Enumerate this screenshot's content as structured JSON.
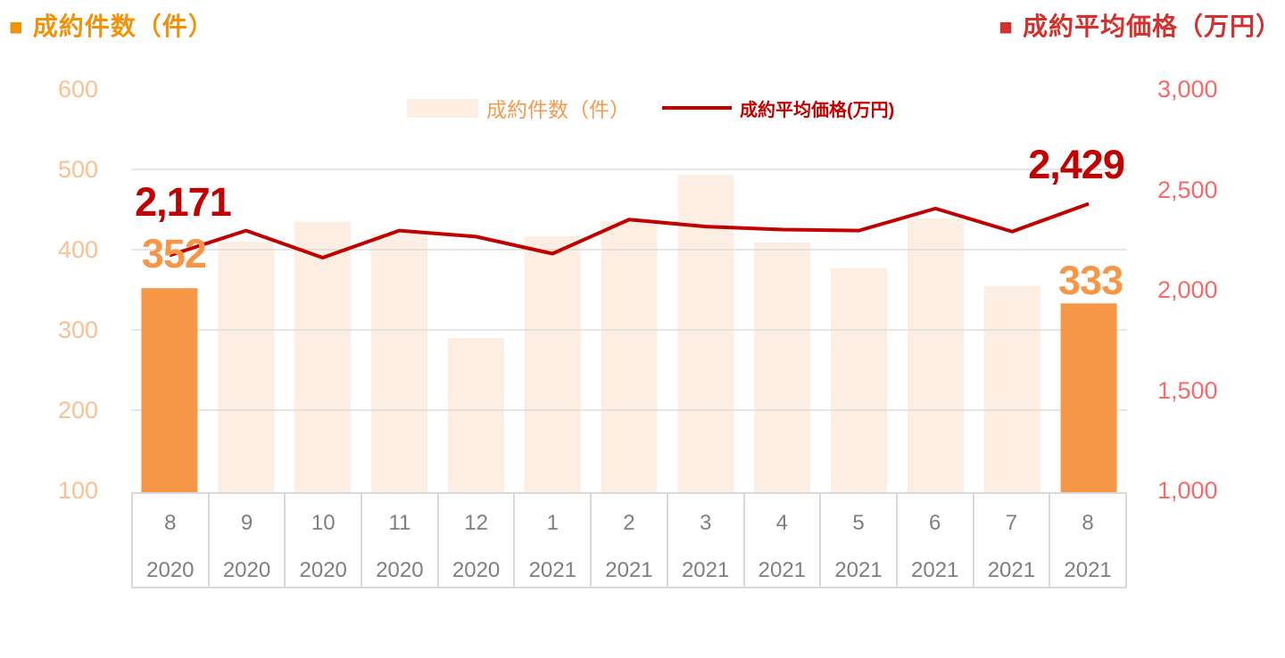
{
  "header": {
    "left_marker": "■",
    "left_title": "成約件数（件）",
    "right_marker": "■",
    "right_title": "成約平均価格（万円）"
  },
  "legend": {
    "bar_label": "成約件数（件）",
    "line_label": "成約平均価格(万円)"
  },
  "chart_data": {
    "type": "bar+line combo",
    "title": "",
    "x_months": [
      "8",
      "9",
      "10",
      "11",
      "12",
      "1",
      "2",
      "3",
      "4",
      "5",
      "6",
      "7",
      "8"
    ],
    "x_years": [
      "2020",
      "2020",
      "2020",
      "2020",
      "2020",
      "2021",
      "2021",
      "2021",
      "2021",
      "2021",
      "2021",
      "2021",
      "2021"
    ],
    "series": [
      {
        "name": "成約件数（件）",
        "type": "bar",
        "axis": "left",
        "values": [
          352,
          410,
          435,
          420,
          290,
          417,
          436,
          493,
          409,
          377,
          439,
          355,
          333
        ]
      },
      {
        "name": "成約平均価格(万円)",
        "type": "line",
        "axis": "right",
        "values": [
          2171,
          2295,
          2160,
          2295,
          2265,
          2180,
          2350,
          2315,
          2300,
          2295,
          2405,
          2290,
          2429
        ]
      }
    ],
    "left_axis": {
      "label": "成約件数（件）",
      "min": 100,
      "max": 600,
      "ticks": [
        600,
        500,
        400,
        300,
        200,
        100
      ],
      "tick_labels": [
        "600",
        "500",
        "400",
        "300",
        "200",
        "100"
      ]
    },
    "right_axis": {
      "label": "成約平均価格（万円）",
      "min": 1000,
      "max": 3000,
      "ticks": [
        3000,
        2500,
        2000,
        1500,
        1000
      ],
      "tick_labels": [
        "3,000",
        "2,500",
        "2,000",
        "1,500",
        "1,000"
      ]
    },
    "annotations": [
      {
        "text": "2,171",
        "series": "line",
        "index": 0
      },
      {
        "text": "352",
        "series": "bar",
        "index": 0
      },
      {
        "text": "2,429",
        "series": "line",
        "index": 12
      },
      {
        "text": "333",
        "series": "bar",
        "index": 12
      }
    ],
    "highlighted_bar_indices": [
      0,
      12
    ],
    "grid": "horizontal major gridlines (left axis), legend top center"
  },
  "colors": {
    "title_orange": "#F0930A",
    "title_red": "#D2322D",
    "bar_highlight": "#F79646",
    "bar_normal": "#FCEEE3",
    "line": "#C00000",
    "annotation_line_text": "#C00000",
    "annotation_bar_text": "#F79646",
    "left_axis_text": "#FAC090",
    "right_axis_text": "#F8696B",
    "legend_bar_text": "#F5994D",
    "legend_line_text": "#C00000",
    "table_text": "#7F7F7F",
    "table_border": "#D9D9D9",
    "gridline": "#DDDDDD"
  }
}
